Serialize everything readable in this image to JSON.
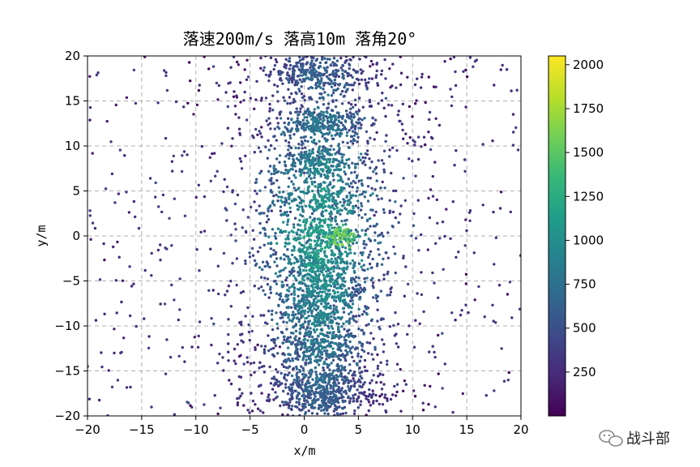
{
  "chart_data": {
    "type": "scatter",
    "title": "落速200m/s 落高10m 落角20°",
    "xlabel": "x/m",
    "ylabel": "y/m",
    "xlim": [
      -20,
      20
    ],
    "ylim": [
      -20,
      20
    ],
    "xticks": [
      -20,
      -15,
      -10,
      -5,
      0,
      5,
      10,
      15,
      20
    ],
    "yticks": [
      -20,
      -15,
      -10,
      -5,
      0,
      5,
      10,
      15,
      20
    ],
    "grid": true,
    "colormap": "viridis",
    "color_range": [
      0,
      2050
    ],
    "colorbar_ticks": [
      250,
      500,
      750,
      1000,
      1250,
      1500,
      1750,
      2000
    ],
    "distribution": {
      "description_values": {
        "core_x_center": 1.5,
        "core_x_spread": 2.0,
        "band_y_centers": [
          18,
          12.5,
          8,
          4,
          0,
          -3,
          -6,
          -9,
          -12.5,
          -16,
          -18
        ],
        "hot_spot": [
          3.5,
          0
        ],
        "hot_spot_value": 1700
      }
    }
  },
  "watermark": {
    "text": "战斗部"
  },
  "colors": {
    "viridis": [
      "#440154",
      "#482878",
      "#3e4989",
      "#31688e",
      "#26828e",
      "#1f9e89",
      "#35b779",
      "#6ece58",
      "#b5de2b",
      "#fde725"
    ]
  }
}
